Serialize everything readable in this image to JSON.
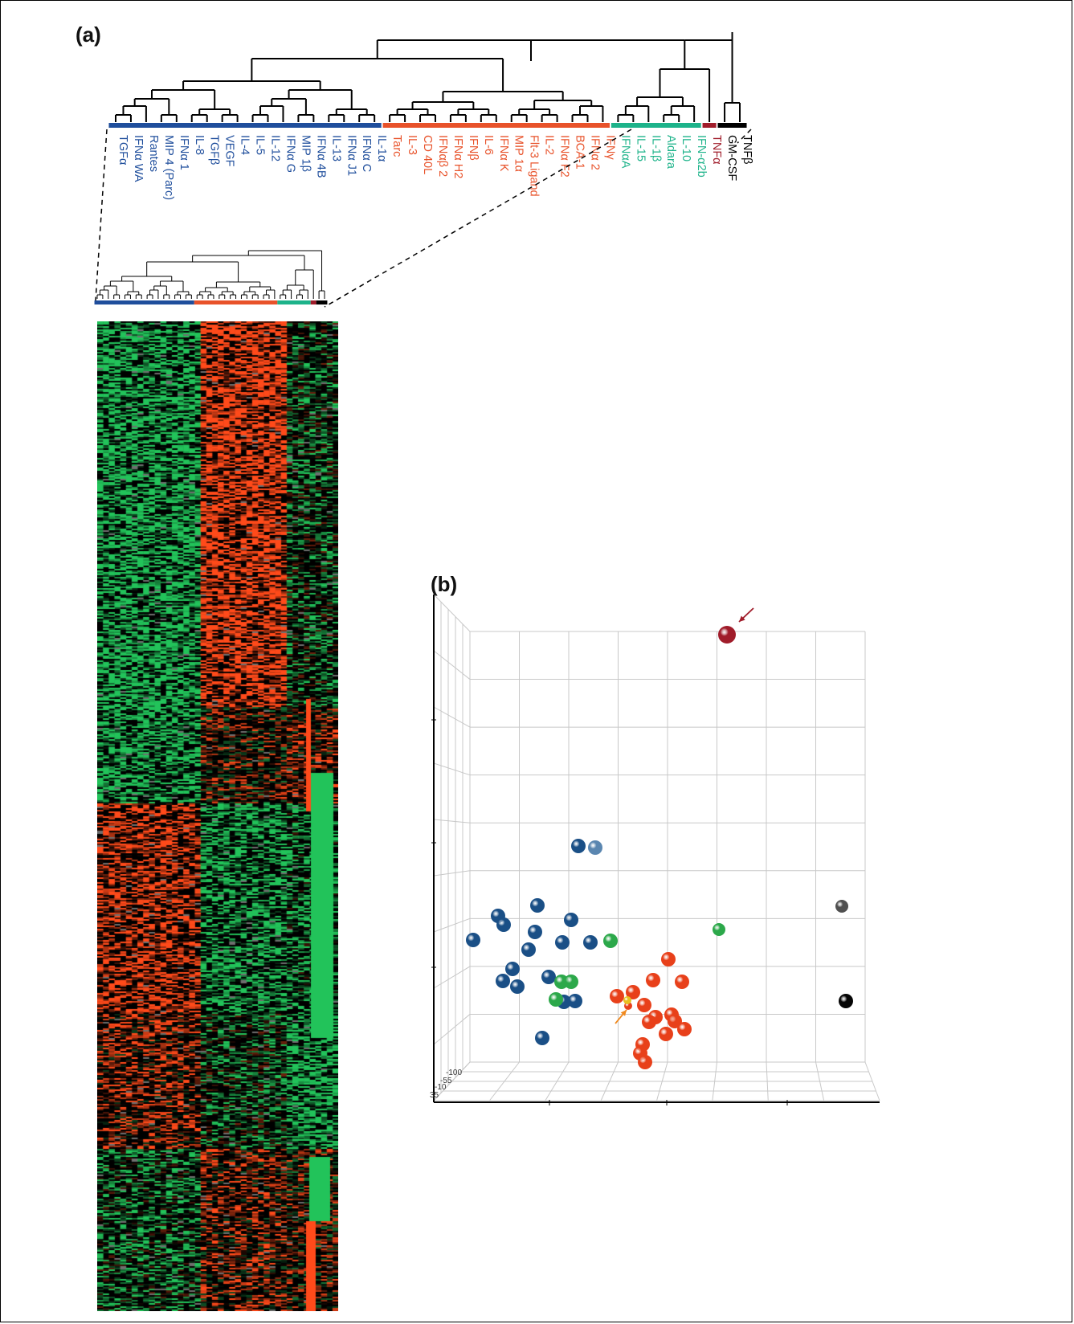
{
  "figure": {
    "panel_a_label": "(a)",
    "panel_b_label": "(b)"
  },
  "colors": {
    "blue": "#1f4e9c",
    "orange": "#e8522a",
    "green": "#1db38a",
    "darkred": "#a01c2a",
    "black": "#000000",
    "heat_up": "#ff4a1a",
    "heat_down": "#22c35a",
    "heat_mid": "#000000",
    "heat_missing": "#6e6e6e"
  },
  "dendrogram_labels": [
    {
      "text": "TGFα",
      "group": "blue"
    },
    {
      "text": "IFNα WA",
      "group": "blue"
    },
    {
      "text": "Rantes",
      "group": "blue"
    },
    {
      "text": "MIP 4 (Parc)",
      "group": "blue"
    },
    {
      "text": "IFNα 1",
      "group": "blue"
    },
    {
      "text": "IL-8",
      "group": "blue"
    },
    {
      "text": "TGFβ",
      "group": "blue"
    },
    {
      "text": "VEGF",
      "group": "blue"
    },
    {
      "text": "IL-4",
      "group": "blue"
    },
    {
      "text": "IL-5",
      "group": "blue"
    },
    {
      "text": "IL-12",
      "group": "blue"
    },
    {
      "text": "IFNα G",
      "group": "blue"
    },
    {
      "text": "MIP 1β",
      "group": "blue"
    },
    {
      "text": "IFNα 4B",
      "group": "blue"
    },
    {
      "text": "IL-13",
      "group": "blue"
    },
    {
      "text": "IFNα J1",
      "group": "blue"
    },
    {
      "text": "IFNα C",
      "group": "blue"
    },
    {
      "text": "IL-1α",
      "group": "blue"
    },
    {
      "text": "Tarc",
      "group": "orange"
    },
    {
      "text": "IL-3",
      "group": "orange"
    },
    {
      "text": "CD 40L",
      "group": "orange"
    },
    {
      "text": "IFNαβ 2",
      "group": "orange"
    },
    {
      "text": "IFNα H2",
      "group": "orange"
    },
    {
      "text": "IFNβ",
      "group": "orange"
    },
    {
      "text": "IL-6",
      "group": "orange"
    },
    {
      "text": "IFNα K",
      "group": "orange"
    },
    {
      "text": "MIP 1α",
      "group": "orange"
    },
    {
      "text": "Flt-3 Ligand",
      "group": "orange"
    },
    {
      "text": "IL-2",
      "group": "orange"
    },
    {
      "text": "IFNα F2",
      "group": "orange"
    },
    {
      "text": "BCA-1",
      "group": "orange"
    },
    {
      "text": "IFNα 2",
      "group": "orange"
    },
    {
      "text": "IFNγ",
      "group": "orange"
    },
    {
      "text": "IFNαA",
      "group": "green"
    },
    {
      "text": "IL-15",
      "group": "green"
    },
    {
      "text": "IL-1β",
      "group": "green"
    },
    {
      "text": "Aldara",
      "group": "green"
    },
    {
      "text": "IL-10",
      "group": "green"
    },
    {
      "text": "IFN-α2b",
      "group": "green"
    },
    {
      "text": "TNFα",
      "group": "darkred"
    },
    {
      "text": "GM-CSF",
      "group": "black"
    },
    {
      "text": "TNFβ",
      "group": "black"
    }
  ],
  "scatter3d": {
    "axis_tick_labels": [
      "-100",
      "-55",
      "-10",
      "35"
    ],
    "points": [
      {
        "group": "darkred",
        "color": "#a01c2a"
      },
      {
        "group": "blue",
        "color": "#1a4f86"
      },
      {
        "group": "blue",
        "color": "#5a86b0"
      },
      {
        "group": "blue",
        "color": "#1a4f86"
      },
      {
        "group": "blue",
        "color": "#1a4f86"
      },
      {
        "group": "blue",
        "color": "#1a4f86"
      },
      {
        "group": "blue",
        "color": "#1a4f86"
      },
      {
        "group": "blue",
        "color": "#1a4f86"
      },
      {
        "group": "blue",
        "color": "#1a4f86"
      },
      {
        "group": "blue",
        "color": "#1a4f86"
      },
      {
        "group": "blue",
        "color": "#1a4f86"
      },
      {
        "group": "blue",
        "color": "#1a4f86"
      },
      {
        "group": "blue",
        "color": "#1a4f86"
      },
      {
        "group": "blue",
        "color": "#1a4f86"
      },
      {
        "group": "blue",
        "color": "#1a4f86"
      },
      {
        "group": "blue",
        "color": "#1a4f86"
      },
      {
        "group": "blue",
        "color": "#1a4f86"
      },
      {
        "group": "blue",
        "color": "#1a4f86"
      },
      {
        "group": "blue",
        "color": "#1a4f86"
      },
      {
        "group": "green",
        "color": "#2ca84a"
      },
      {
        "group": "green",
        "color": "#2ca84a"
      },
      {
        "group": "green",
        "color": "#2ca84a"
      },
      {
        "group": "green",
        "color": "#2ca84a"
      },
      {
        "group": "green",
        "color": "#2ca84a"
      },
      {
        "group": "gray",
        "color": "#505050"
      },
      {
        "group": "black",
        "color": "#050505"
      },
      {
        "group": "orange",
        "color": "#e8401a"
      },
      {
        "group": "orange",
        "color": "#e8401a"
      },
      {
        "group": "orange",
        "color": "#e8401a"
      },
      {
        "group": "orange",
        "color": "#e8401a"
      },
      {
        "group": "orange",
        "color": "#e8401a"
      },
      {
        "group": "orange",
        "color": "#e8401a"
      },
      {
        "group": "orange",
        "color": "#e8401a"
      },
      {
        "group": "orange",
        "color": "#e8401a"
      },
      {
        "group": "orange",
        "color": "#e8401a"
      },
      {
        "group": "orange",
        "color": "#e8401a"
      },
      {
        "group": "orange",
        "color": "#e8401a"
      },
      {
        "group": "orange",
        "color": "#e8401a"
      },
      {
        "group": "orange",
        "color": "#e8401a"
      },
      {
        "group": "orange",
        "color": "#e8401a"
      },
      {
        "group": "orange",
        "color": "#e8401a"
      },
      {
        "group": "orange",
        "color": "#e8401a"
      },
      {
        "group": "yellow",
        "color": "#e8c020"
      }
    ]
  }
}
